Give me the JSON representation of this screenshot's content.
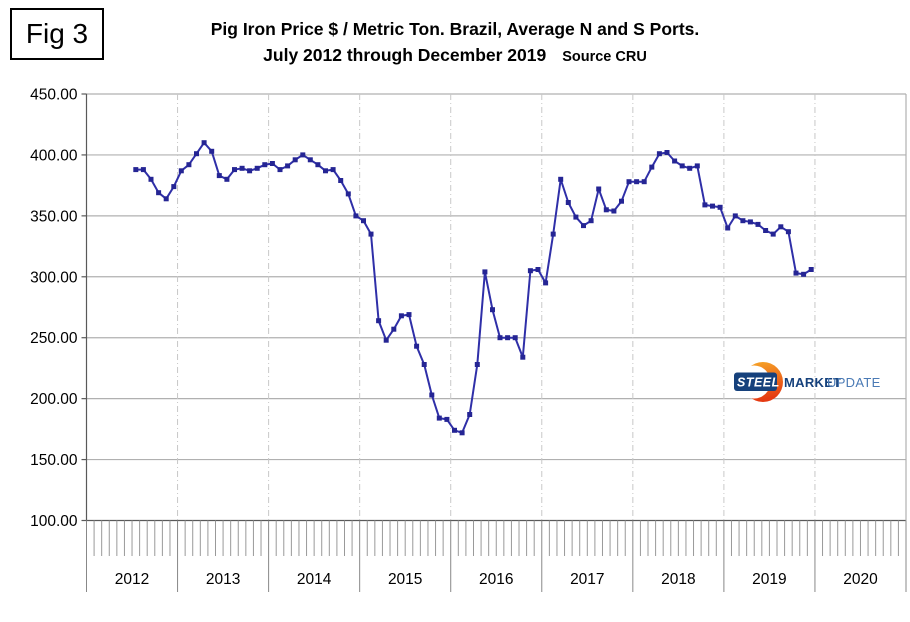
{
  "figure_label": "Fig 3",
  "title": {
    "line1": "Pig Iron Price $ / Metric Ton. Brazil, Average N and S Ports.",
    "line2": "July 2012 through December 2019",
    "source": "Source CRU"
  },
  "logo": {
    "steel": "STEEL",
    "market": "MARKET",
    "update": "UPDATE",
    "colors": {
      "box": "#16417c",
      "steel_text": "#ffffff",
      "market_text": "#16417c",
      "update_text": "#4a7ab5",
      "crescent_top": "#f7a928",
      "crescent_bottom": "#e53a12"
    }
  },
  "colors": {
    "line": "#2f2fa8",
    "marker": "#252594",
    "gridline": "#b0b0b0",
    "dashed_year_line": "#c8c8c8",
    "axis": "#595959",
    "month_tick": "#999999",
    "year_divider": "#888888",
    "label_text": "#000000"
  },
  "chart_data": {
    "type": "line",
    "title": "Pig Iron Price $ / Metric Ton. Brazil, Average N and S Ports.",
    "subtitle": "July 2012 through December 2019",
    "source": "CRU",
    "unit": "USD per metric ton",
    "frequency": "monthly",
    "start_month": "2012-07",
    "end_month": "2019-12",
    "xlabel": "",
    "ylabel": "",
    "ylim": [
      100,
      450
    ],
    "grid": true,
    "legend": false,
    "x_axis_year_labels": [
      "2012",
      "2013",
      "2014",
      "2015",
      "2016",
      "2017",
      "2018",
      "2019",
      "2020"
    ],
    "x_axis_span_months": 108,
    "first_point_month_offset": 6,
    "y_tick_labels": [
      "450.00",
      "400.00",
      "350.00",
      "300.00",
      "250.00",
      "200.00",
      "150.00",
      "100.00"
    ],
    "series": [
      {
        "name": "Pig iron price $ per metric ton, Brazil avg N and S ports",
        "color": "#2f2fa8",
        "marker": "square",
        "values": [
          388,
          388,
          380,
          369,
          364,
          374,
          387,
          392,
          401,
          410,
          403,
          383,
          380,
          388,
          389,
          387,
          389,
          392,
          393,
          388,
          391,
          396,
          400,
          396,
          392,
          387,
          388,
          379,
          368,
          350,
          346,
          335,
          264,
          248,
          257,
          268,
          269,
          243,
          228,
          203,
          184,
          183,
          174,
          172,
          187,
          228,
          304,
          273,
          250,
          250,
          250,
          234,
          305,
          306,
          295,
          335,
          380,
          361,
          349,
          342,
          346,
          372,
          355,
          354,
          362,
          378,
          378,
          378,
          390,
          401,
          402,
          395,
          391,
          389,
          391,
          359,
          358,
          357,
          340,
          350,
          346,
          345,
          343,
          338,
          335,
          341,
          337,
          303,
          302,
          306
        ]
      }
    ]
  }
}
